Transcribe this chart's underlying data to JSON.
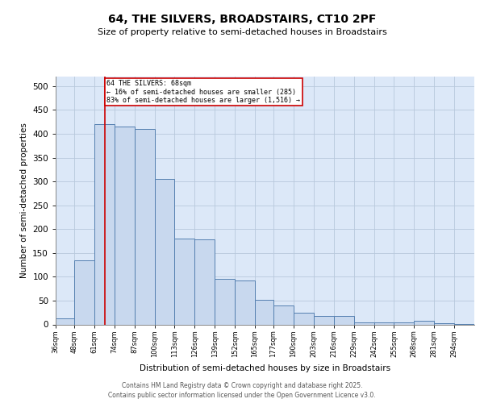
{
  "title": "64, THE SILVERS, BROADSTAIRS, CT10 2PF",
  "subtitle": "Size of property relative to semi-detached houses in Broadstairs",
  "xlabel": "Distribution of semi-detached houses by size in Broadstairs",
  "ylabel": "Number of semi-detached properties",
  "categories": [
    "36sqm",
    "48sqm",
    "61sqm",
    "74sqm",
    "87sqm",
    "100sqm",
    "113sqm",
    "126sqm",
    "139sqm",
    "152sqm",
    "165sqm",
    "177sqm",
    "190sqm",
    "203sqm",
    "216sqm",
    "229sqm",
    "242sqm",
    "255sqm",
    "268sqm",
    "281sqm",
    "294sqm"
  ],
  "bar_values": [
    13,
    135,
    420,
    415,
    410,
    305,
    180,
    178,
    95,
    93,
    52,
    40,
    25,
    17,
    17,
    5,
    5,
    5,
    7,
    2,
    1
  ],
  "bar_color": "#c8d8ee",
  "bar_edge_color": "#5580b0",
  "grid_color": "#b8c8dc",
  "background_color": "#dce8f8",
  "vline_color": "#cc0000",
  "vline_x": 68,
  "annotation_text": "64 THE SILVERS: 68sqm\n← 16% of semi-detached houses are smaller (285)\n83% of semi-detached houses are larger (1,516) →",
  "annotation_box_color": "#cc0000",
  "ylim": [
    0,
    520
  ],
  "yticks": [
    0,
    50,
    100,
    150,
    200,
    250,
    300,
    350,
    400,
    450,
    500
  ],
  "footer": "Contains HM Land Registry data © Crown copyright and database right 2025.\nContains public sector information licensed under the Open Government Licence v3.0.",
  "bin_edges": [
    36,
    48,
    61,
    74,
    87,
    100,
    113,
    126,
    139,
    152,
    165,
    177,
    190,
    203,
    216,
    229,
    242,
    255,
    268,
    281,
    294,
    307
  ]
}
